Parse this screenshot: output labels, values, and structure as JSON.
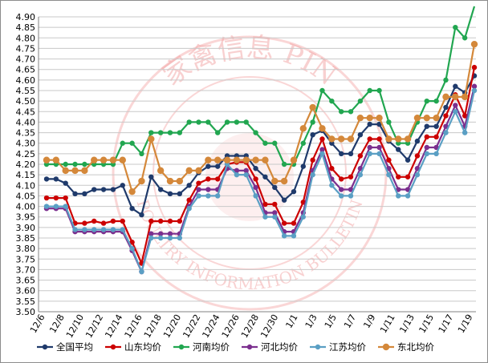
{
  "chart_data": {
    "type": "line",
    "ylim": [
      3.5,
      4.9
    ],
    "ystep": 0.05,
    "grid": true,
    "legend_position": "bottom",
    "x_labels": [
      "12/6",
      "12/8",
      "12/10",
      "12/12",
      "12/14",
      "12/16",
      "12/18",
      "12/20",
      "12/22",
      "12/24",
      "12/26",
      "12/28",
      "12/30",
      "1/1",
      "1/3",
      "1/5",
      "1/7",
      "1/9",
      "1/11",
      "1/13",
      "1/15",
      "1/17",
      "1/19"
    ],
    "series": [
      {
        "name": "全国平均",
        "color": "#1f3a6b",
        "values": [
          4.13,
          4.13,
          4.11,
          4.06,
          4.06,
          4.08,
          4.08,
          4.08,
          4.1,
          3.99,
          3.96,
          4.14,
          4.08,
          4.06,
          4.06,
          4.1,
          4.16,
          4.19,
          4.19,
          4.24,
          4.24,
          4.24,
          4.18,
          4.14,
          4.09,
          4.03,
          4.07,
          4.19,
          4.34,
          4.36,
          4.3,
          4.25,
          4.25,
          4.34,
          4.39,
          4.39,
          4.31,
          4.27,
          4.22,
          4.31,
          4.38,
          4.38,
          4.47,
          4.57,
          4.54,
          4.62
        ]
      },
      {
        "name": "山东均价",
        "color": "#cc0000",
        "values": [
          4.04,
          4.04,
          4.04,
          3.92,
          3.92,
          3.93,
          3.92,
          3.93,
          3.93,
          3.83,
          3.73,
          3.93,
          3.93,
          3.93,
          3.93,
          4.03,
          4.11,
          4.13,
          4.13,
          4.2,
          4.21,
          4.21,
          4.13,
          4.01,
          4.01,
          3.92,
          3.92,
          4.02,
          4.22,
          4.32,
          4.18,
          4.13,
          4.14,
          4.24,
          4.32,
          4.32,
          4.22,
          4.14,
          4.14,
          4.24,
          4.33,
          4.33,
          4.43,
          4.53,
          4.43,
          4.66
        ]
      },
      {
        "name": "河南均价",
        "color": "#21a650",
        "values": [
          4.2,
          4.2,
          4.2,
          4.2,
          4.2,
          4.2,
          4.2,
          4.2,
          4.3,
          4.3,
          4.25,
          4.35,
          4.35,
          4.35,
          4.35,
          4.4,
          4.4,
          4.4,
          4.35,
          4.4,
          4.4,
          4.4,
          4.35,
          4.3,
          4.3,
          4.2,
          4.2,
          4.3,
          4.4,
          4.55,
          4.5,
          4.45,
          4.45,
          4.5,
          4.55,
          4.55,
          4.4,
          4.3,
          4.3,
          4.4,
          4.5,
          4.5,
          4.6,
          4.85,
          4.8,
          4.95
        ]
      },
      {
        "name": "河北均价",
        "color": "#7b2f8e",
        "values": [
          3.99,
          3.99,
          3.99,
          3.88,
          3.88,
          3.88,
          3.88,
          3.88,
          3.88,
          3.79,
          3.69,
          3.87,
          3.87,
          3.87,
          3.87,
          4.0,
          4.08,
          4.08,
          4.08,
          4.18,
          4.17,
          4.17,
          4.09,
          3.97,
          3.97,
          3.88,
          3.88,
          3.97,
          4.17,
          4.27,
          4.13,
          4.08,
          4.08,
          4.18,
          4.28,
          4.28,
          4.18,
          4.08,
          4.08,
          4.18,
          4.28,
          4.28,
          4.38,
          4.48,
          4.38,
          4.57
        ]
      },
      {
        "name": "江苏均价",
        "color": "#5a9fc4",
        "values": [
          4.0,
          4.0,
          4.0,
          3.89,
          3.89,
          3.89,
          3.89,
          3.89,
          3.89,
          3.8,
          3.69,
          3.85,
          3.85,
          3.85,
          3.85,
          3.99,
          4.05,
          4.05,
          4.05,
          4.2,
          4.15,
          4.15,
          4.05,
          3.95,
          3.95,
          3.86,
          3.86,
          3.95,
          4.15,
          4.25,
          4.1,
          4.05,
          4.05,
          4.15,
          4.25,
          4.25,
          4.15,
          4.05,
          4.05,
          4.15,
          4.25,
          4.25,
          4.35,
          4.45,
          4.35,
          4.55
        ]
      },
      {
        "name": "东北均价",
        "color": "#d4883a",
        "values": [
          4.22,
          4.22,
          4.17,
          4.17,
          4.17,
          4.22,
          4.22,
          4.22,
          4.22,
          4.07,
          4.12,
          4.32,
          4.17,
          4.12,
          4.12,
          4.17,
          4.17,
          4.22,
          4.22,
          4.22,
          4.22,
          4.22,
          4.22,
          4.22,
          4.12,
          4.12,
          4.22,
          4.37,
          4.47,
          4.37,
          4.32,
          4.32,
          4.32,
          4.42,
          4.42,
          4.42,
          4.32,
          4.32,
          4.32,
          4.42,
          4.42,
          4.42,
          4.52,
          4.52,
          4.52,
          4.77
        ]
      }
    ]
  },
  "watermark": {
    "top_text": "家禽信息 PIN",
    "bottom_text": "POULTRY INFORMATION BULLETIN"
  }
}
